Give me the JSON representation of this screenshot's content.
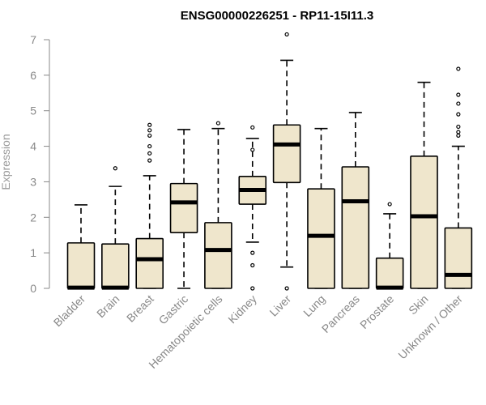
{
  "chart_data": {
    "type": "boxplot",
    "title": "ENSG00000226251 - RP11-15I11.3",
    "xlabel": "",
    "ylabel": "Expression",
    "ylim": [
      0,
      7
    ],
    "yticks": [
      0,
      1,
      2,
      3,
      4,
      5,
      6,
      7
    ],
    "grid": false,
    "box_fill": "#efe6cc",
    "box_stroke": "#000000",
    "axis_color": "#888888",
    "categories": [
      "Bladder",
      "Brain",
      "Breast",
      "Gastric",
      "Hematopoietic cells",
      "Kidney",
      "Liver",
      "Lung",
      "Pancreas",
      "Prostate",
      "Skin",
      "Unknown / Other"
    ],
    "boxes": [
      {
        "category": "Bladder",
        "whisker_low": 0,
        "q1": 0,
        "median": 0.02,
        "q3": 1.28,
        "whisker_high": 2.35,
        "outliers": []
      },
      {
        "category": "Brain",
        "whisker_low": 0,
        "q1": 0,
        "median": 0.02,
        "q3": 1.25,
        "whisker_high": 2.87,
        "outliers": [
          3.38
        ]
      },
      {
        "category": "Breast",
        "whisker_low": 0,
        "q1": 0,
        "median": 0.82,
        "q3": 1.4,
        "whisker_high": 3.17,
        "outliers": [
          3.6,
          3.8,
          4.0,
          4.3,
          4.45,
          4.6
        ]
      },
      {
        "category": "Gastric",
        "whisker_low": 0,
        "q1": 1.57,
        "median": 2.42,
        "q3": 2.95,
        "whisker_high": 4.47,
        "outliers": []
      },
      {
        "category": "Hematopoietic cells",
        "whisker_low": 0,
        "q1": 0,
        "median": 1.08,
        "q3": 1.85,
        "whisker_high": 4.5,
        "outliers": [
          4.65
        ]
      },
      {
        "category": "Kidney",
        "whisker_low": 1.3,
        "q1": 2.37,
        "median": 2.77,
        "q3": 3.15,
        "whisker_high": 4.22,
        "outliers": [
          0,
          0.65,
          1.0,
          3.9,
          4.53
        ]
      },
      {
        "category": "Liver",
        "whisker_low": 0.6,
        "q1": 2.98,
        "median": 4.05,
        "q3": 4.6,
        "whisker_high": 6.42,
        "outliers": [
          0,
          7.15
        ]
      },
      {
        "category": "Lung",
        "whisker_low": 0,
        "q1": 0,
        "median": 1.48,
        "q3": 2.8,
        "whisker_high": 4.5,
        "outliers": []
      },
      {
        "category": "Pancreas",
        "whisker_low": 0,
        "q1": 0,
        "median": 2.45,
        "q3": 3.42,
        "whisker_high": 4.95,
        "outliers": []
      },
      {
        "category": "Prostate",
        "whisker_low": 0,
        "q1": 0,
        "median": 0.02,
        "q3": 0.85,
        "whisker_high": 2.1,
        "outliers": [
          2.37
        ]
      },
      {
        "category": "Skin",
        "whisker_low": 0,
        "q1": 0,
        "median": 2.03,
        "q3": 3.72,
        "whisker_high": 5.8,
        "outliers": []
      },
      {
        "category": "Unknown / Other",
        "whisker_low": 0,
        "q1": 0,
        "median": 0.38,
        "q3": 1.7,
        "whisker_high": 4.0,
        "outliers": [
          4.3,
          4.4,
          4.55,
          4.9,
          5.2,
          5.45,
          6.18
        ]
      }
    ]
  }
}
